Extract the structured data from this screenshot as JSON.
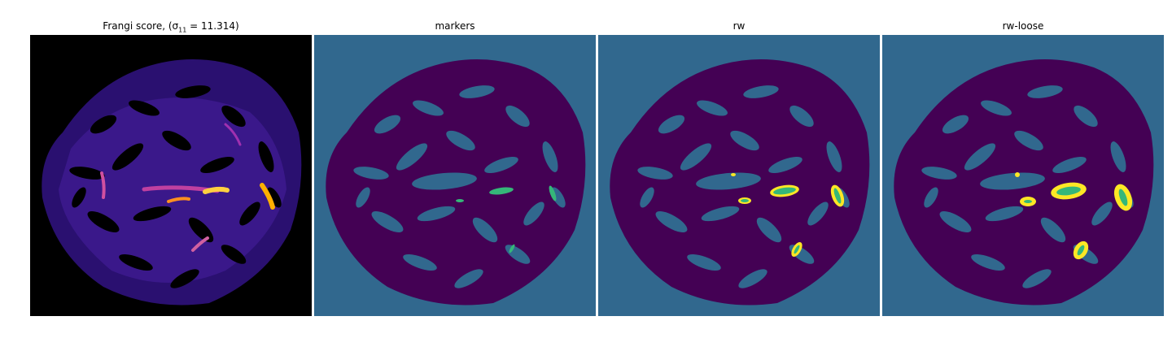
{
  "panels": [
    {
      "title": "Frangi score, ",
      "math": "(σ",
      "sub": "11",
      "math_rest": " = 11.314)"
    },
    {
      "title": "markers"
    },
    {
      "title": "rw"
    },
    {
      "title": "rw-loose"
    }
  ],
  "colors": {
    "background_black": "#000000",
    "vessel_purple": "#4a1a8a",
    "bright_orange": "#ffb000",
    "bright_yellow": "#ffe840",
    "cluster_bg": "#31688e",
    "cluster_dark": "#440154",
    "marker_green": "#35b779",
    "marker_yellow": "#fde725"
  }
}
